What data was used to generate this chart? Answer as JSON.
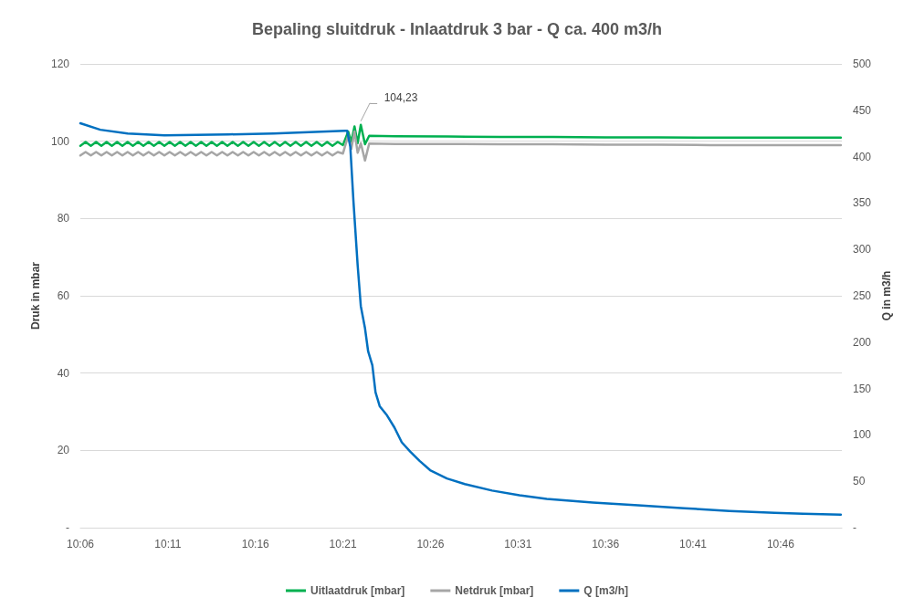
{
  "chart_data": {
    "type": "line",
    "title": "Bepaling sluitdruk - Inlaatdruk 3 bar - Q ca. 400 m3/h",
    "ylabel": "Druk in mbar",
    "y2label": "Q in m3/h",
    "xlim": [
      10.1,
      10.825
    ],
    "xticks": [
      {
        "value": 10.1,
        "label": "10:06"
      },
      {
        "value": 10.18333,
        "label": "10:11"
      },
      {
        "value": 10.26667,
        "label": "10:16"
      },
      {
        "value": 10.35,
        "label": "10:21"
      },
      {
        "value": 10.43333,
        "label": "10:26"
      },
      {
        "value": 10.51667,
        "label": "10:31"
      },
      {
        "value": 10.6,
        "label": "10:36"
      },
      {
        "value": 10.68333,
        "label": "10:41"
      },
      {
        "value": 10.76667,
        "label": "10:46"
      }
    ],
    "ylim": [
      0,
      120
    ],
    "yticks": [
      {
        "value": 0,
        "label": "-"
      },
      20,
      40,
      60,
      80,
      100,
      120
    ],
    "y2lim": [
      0,
      500
    ],
    "y2ticks": [
      {
        "value": 0,
        "label": "-"
      },
      50,
      100,
      150,
      200,
      250,
      300,
      350,
      400,
      450,
      500
    ],
    "grid": "y",
    "legend": "bottom",
    "marker": "none",
    "line_style": "solid",
    "annotations": [
      {
        "text": "104,23",
        "x": 10.367,
        "y": 104.23
      }
    ],
    "series": [
      {
        "name": "Uitlaatdruk [mbar]",
        "color": "#00b050",
        "x": [
          10.1,
          10.105,
          10.11,
          10.115,
          10.12,
          10.125,
          10.13,
          10.135,
          10.14,
          10.145,
          10.15,
          10.155,
          10.16,
          10.165,
          10.17,
          10.175,
          10.18,
          10.185,
          10.19,
          10.195,
          10.2,
          10.205,
          10.21,
          10.215,
          10.22,
          10.225,
          10.23,
          10.235,
          10.24,
          10.245,
          10.25,
          10.255,
          10.26,
          10.265,
          10.27,
          10.275,
          10.28,
          10.285,
          10.29,
          10.295,
          10.3,
          10.305,
          10.31,
          10.315,
          10.32,
          10.325,
          10.33,
          10.335,
          10.34,
          10.345,
          10.35,
          10.355,
          10.358,
          10.361,
          10.364,
          10.367,
          10.371,
          10.375,
          10.4,
          10.45,
          10.5,
          10.55,
          10.6,
          10.65,
          10.7,
          10.75,
          10.8,
          10.824
        ],
        "values": [
          98.8,
          99.8,
          98.8,
          99.8,
          98.8,
          99.8,
          98.8,
          99.8,
          98.8,
          99.8,
          98.8,
          99.8,
          98.8,
          99.8,
          98.8,
          99.8,
          98.8,
          99.8,
          98.8,
          99.8,
          98.8,
          99.8,
          98.8,
          99.8,
          98.8,
          99.8,
          98.8,
          99.8,
          98.8,
          99.8,
          98.8,
          99.8,
          98.8,
          99.8,
          98.8,
          99.8,
          98.8,
          99.8,
          98.8,
          99.8,
          98.8,
          99.8,
          98.8,
          99.8,
          98.8,
          99.8,
          98.8,
          99.8,
          98.8,
          99.8,
          99.0,
          102.5,
          99.8,
          103.8,
          99.5,
          104.23,
          99.2,
          101.4,
          101.3,
          101.2,
          101.1,
          101.1,
          101.0,
          101.0,
          100.9,
          100.9,
          100.9,
          100.9
        ]
      },
      {
        "name": "Netdruk [mbar]",
        "color": "#a6a6a6",
        "x": [
          10.1,
          10.105,
          10.11,
          10.115,
          10.12,
          10.125,
          10.13,
          10.135,
          10.14,
          10.145,
          10.15,
          10.155,
          10.16,
          10.165,
          10.17,
          10.175,
          10.18,
          10.185,
          10.19,
          10.195,
          10.2,
          10.205,
          10.21,
          10.215,
          10.22,
          10.225,
          10.23,
          10.235,
          10.24,
          10.245,
          10.25,
          10.255,
          10.26,
          10.265,
          10.27,
          10.275,
          10.28,
          10.285,
          10.29,
          10.295,
          10.3,
          10.305,
          10.31,
          10.315,
          10.32,
          10.325,
          10.33,
          10.335,
          10.34,
          10.345,
          10.35,
          10.355,
          10.358,
          10.361,
          10.364,
          10.367,
          10.371,
          10.375,
          10.4,
          10.45,
          10.5,
          10.55,
          10.6,
          10.65,
          10.7,
          10.75,
          10.8,
          10.824
        ],
        "values": [
          96.3,
          97.2,
          96.3,
          97.2,
          96.3,
          97.2,
          96.3,
          97.2,
          96.3,
          97.2,
          96.3,
          97.2,
          96.3,
          97.2,
          96.3,
          97.2,
          96.3,
          97.2,
          96.3,
          97.2,
          96.3,
          97.2,
          96.3,
          97.2,
          96.3,
          97.2,
          96.3,
          97.2,
          96.3,
          97.2,
          96.3,
          97.2,
          96.3,
          97.2,
          96.3,
          97.2,
          96.3,
          97.2,
          96.3,
          97.2,
          96.3,
          97.2,
          96.3,
          97.2,
          96.3,
          97.2,
          96.3,
          97.2,
          96.3,
          97.2,
          96.8,
          101.5,
          98.0,
          102.5,
          97.0,
          99.5,
          95.0,
          99.4,
          99.3,
          99.3,
          99.2,
          99.2,
          99.1,
          99.1,
          99.0,
          99.0,
          99.0,
          99.0
        ]
      },
      {
        "name": "Q [m3/h]",
        "color": "#0070c0",
        "axis": "y2",
        "x": [
          10.1,
          10.119,
          10.145,
          10.18,
          10.241,
          10.284,
          10.352,
          10.354,
          10.357,
          10.36,
          10.364,
          10.367,
          10.371,
          10.374,
          10.378,
          10.381,
          10.385,
          10.392,
          10.399,
          10.406,
          10.414,
          10.423,
          10.433,
          10.449,
          10.466,
          10.492,
          10.518,
          10.544,
          10.588,
          10.631,
          10.675,
          10.718,
          10.761,
          10.788,
          10.824
        ],
        "values": [
          436,
          429,
          425,
          423,
          424,
          425,
          428,
          428,
          411,
          352,
          283,
          239,
          215,
          190,
          175,
          146,
          131,
          121,
          108,
          92,
          82,
          72,
          62,
          53,
          47,
          40,
          35,
          31,
          27,
          24,
          21,
          18,
          16,
          15,
          14
        ]
      }
    ]
  }
}
